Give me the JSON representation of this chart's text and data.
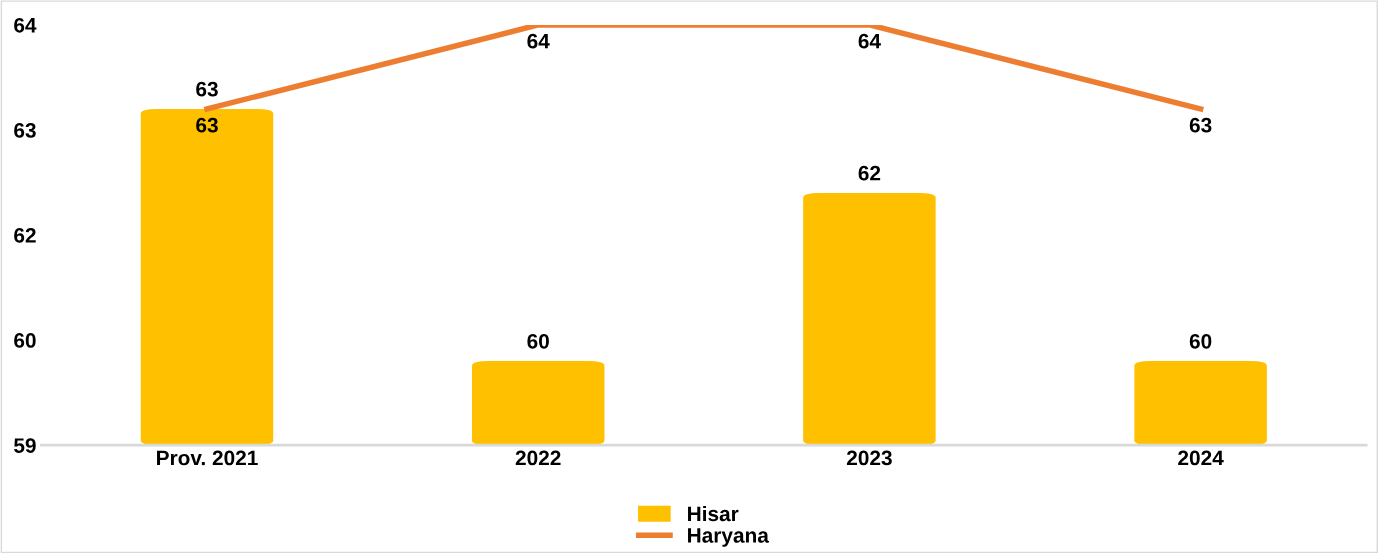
{
  "chart_data": {
    "type": "bar",
    "categories": [
      "Prov. 2021",
      "2022",
      "2023",
      "2024"
    ],
    "series": [
      {
        "name": "Hisar",
        "color": "#ffc000",
        "values": [
          63,
          60,
          62,
          60
        ]
      },
      {
        "name": "Haryana",
        "type": "line",
        "color": "#ed7d31",
        "values": [
          63,
          64,
          64,
          63
        ]
      }
    ],
    "ylim": [
      59,
      64
    ],
    "yticks": [
      59,
      {
        "value": 60.25,
        "label": "60"
      },
      {
        "value": 61.5,
        "label": "62"
      },
      {
        "value": 62.75,
        "label": "63"
      },
      64
    ],
    "data_labels": true,
    "grid": false,
    "legend": "bottom",
    "marker": "none",
    "line_style": "solid"
  }
}
